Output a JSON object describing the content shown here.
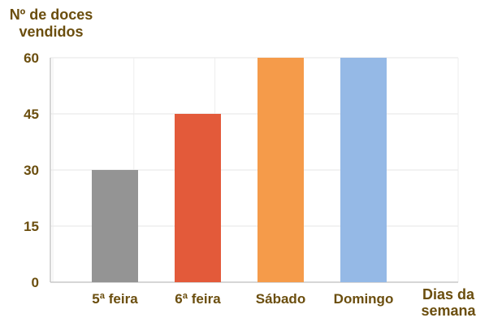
{
  "chart_data": {
    "type": "bar",
    "ylabel": "Nº de doces vendidos",
    "xlabel": "Dias da semana",
    "categories": [
      "5ª feira",
      "6ª feira",
      "Sábado",
      "Domingo"
    ],
    "values": [
      30,
      45,
      60,
      60
    ],
    "colors": [
      "#949494",
      "#e35a3a",
      "#f59b4a",
      "#95b9e6"
    ],
    "ylim": [
      0,
      60
    ],
    "yticks": [
      0,
      15,
      30,
      45,
      60
    ],
    "grid": true,
    "legend": "none"
  }
}
